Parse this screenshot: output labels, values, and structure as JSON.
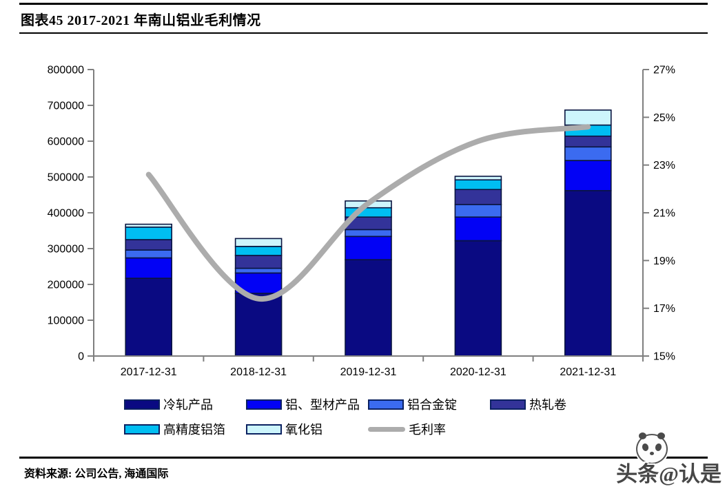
{
  "header": {
    "title": "图表45  2017-2021 年南山铝业毛利情况"
  },
  "chart_data": {
    "type": "bar+line",
    "title": "2017-2021 年南山铝业毛利情况",
    "xlabel": "",
    "ylabel_left": "",
    "ylabel_right": "",
    "categories": [
      "2017-12-31",
      "2018-12-31",
      "2019-12-31",
      "2020-12-31",
      "2021-12-31"
    ],
    "stacked": true,
    "series": [
      {
        "name": "冷轧产品",
        "type": "bar",
        "color": "#0a0a82",
        "values": [
          217000,
          175000,
          269000,
          322000,
          462000
        ]
      },
      {
        "name": "铝、型材产品",
        "type": "bar",
        "color": "#0202f5",
        "values": [
          57000,
          57000,
          65000,
          66000,
          84000
        ]
      },
      {
        "name": "铝合金锭",
        "type": "bar",
        "color": "#3b6bf0",
        "values": [
          22000,
          13000,
          19000,
          35000,
          38000
        ]
      },
      {
        "name": "热轧卷",
        "type": "bar",
        "color": "#333399",
        "values": [
          29000,
          36000,
          35000,
          42000,
          30000
        ]
      },
      {
        "name": "高精度铝箔",
        "type": "bar",
        "color": "#00bef2",
        "values": [
          35000,
          25000,
          26000,
          27000,
          31000
        ]
      },
      {
        "name": "氧化铝",
        "type": "bar",
        "color": "#cdf5fc",
        "values": [
          8000,
          22000,
          19000,
          10000,
          42000
        ]
      },
      {
        "name": "毛利率",
        "type": "line",
        "color": "#acacac",
        "axis": "right",
        "values": [
          22.6,
          17.4,
          21.4,
          24.0,
          24.6
        ]
      }
    ],
    "left_axis": {
      "min": 0,
      "max": 800000,
      "step": 100000,
      "tick_labels": [
        "0",
        "100000",
        "200000",
        "300000",
        "400000",
        "500000",
        "600000",
        "700000",
        "800000"
      ]
    },
    "right_axis": {
      "min": 15,
      "max": 27,
      "step": 2,
      "tick_labels": [
        "15%",
        "17%",
        "19%",
        "21%",
        "23%",
        "25%",
        "27%"
      ]
    },
    "grid": false,
    "legend_position": "bottom"
  },
  "footer": {
    "source": "资料来源: 公司公告, 海通国际"
  },
  "watermark": {
    "text": "头条@认是"
  },
  "colors": {
    "axis": "#7f7f7f",
    "bar_border": "#0a1540",
    "line": "#acacac",
    "text": "#000000"
  }
}
